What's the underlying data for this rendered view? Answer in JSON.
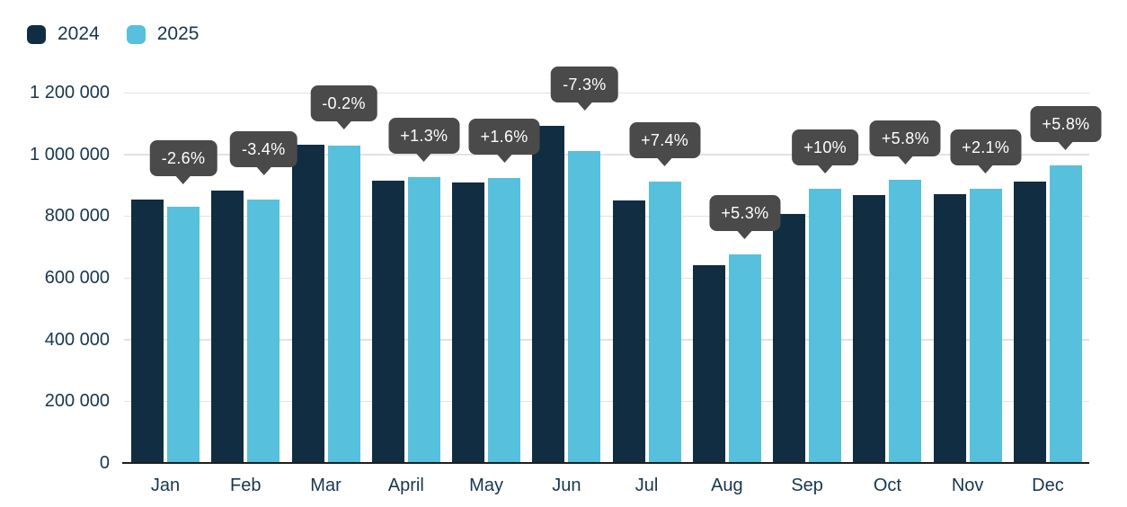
{
  "legend": {
    "items": [
      {
        "label": "2024",
        "color": "#112d42"
      },
      {
        "label": "2025",
        "color": "#57c0dc"
      }
    ]
  },
  "y_axis": {
    "ticks": [
      "1 200 000",
      "1 000 000",
      "800 000",
      "600 000",
      "400 000",
      "200 000",
      "0"
    ]
  },
  "colors": {
    "bar_2024": "#112d42",
    "bar_2025": "#57c0dc",
    "tooltip_background": "#4a4a4a",
    "tooltip_text": "#ffffff",
    "axis_text": "#17374e",
    "gridline": "#e2e2e2",
    "baseline": "#1e1e1e"
  },
  "chart_data": {
    "type": "bar",
    "title": "",
    "xlabel": "",
    "ylabel": "",
    "ylim": [
      0,
      1200000
    ],
    "grid": true,
    "legend_position": "top-left",
    "categories": [
      "Jan",
      "Feb",
      "Mar",
      "April",
      "May",
      "Jun",
      "Jul",
      "Aug",
      "Sep",
      "Oct",
      "Nov",
      "Dec"
    ],
    "series": [
      {
        "name": "2024",
        "color": "#112d42",
        "values": [
          853000,
          882000,
          1030000,
          914000,
          908000,
          1092000,
          850000,
          641000,
          806000,
          867000,
          870000,
          911000
        ]
      },
      {
        "name": "2025",
        "color": "#57c0dc",
        "values": [
          831000,
          852000,
          1028000,
          926000,
          923000,
          1012000,
          913000,
          675000,
          887000,
          917000,
          888000,
          964000
        ]
      }
    ],
    "change_labels": [
      "-2.6%",
      "-3.4%",
      "-0.2%",
      "+1.3%",
      "+1.6%",
      "-7.3%",
      "+7.4%",
      "+5.3%",
      "+10%",
      "+5.8%",
      "+2.1%",
      "+5.8%"
    ]
  }
}
